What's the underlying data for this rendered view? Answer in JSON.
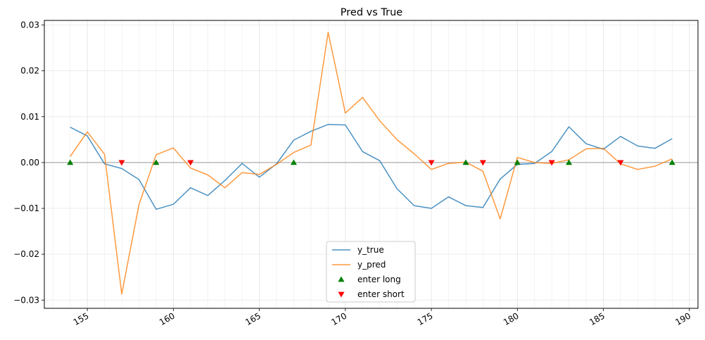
{
  "chart_data": {
    "type": "line",
    "title": "Pred vs True",
    "xlabel": "",
    "ylabel": "",
    "xlim": [
      152.5,
      190.5
    ],
    "ylim": [
      -0.0318,
      0.031
    ],
    "xticks": [
      155,
      160,
      165,
      170,
      175,
      180,
      185,
      190
    ],
    "xtick_labels": [
      "155",
      "160",
      "165",
      "170",
      "175",
      "180",
      "185",
      "190"
    ],
    "yticks": [
      -0.03,
      -0.02,
      -0.01,
      0.0,
      0.01,
      0.02,
      0.03
    ],
    "ytick_labels": [
      "−0.03",
      "−0.02",
      "−0.01",
      "0.00",
      "0.01",
      "0.02",
      "0.03"
    ],
    "grid": true,
    "zero_line": true,
    "legend_position": "lower-center",
    "x": [
      154,
      155,
      156,
      157,
      158,
      159,
      160,
      161,
      162,
      163,
      164,
      165,
      166,
      167,
      168,
      169,
      170,
      171,
      172,
      173,
      174,
      175,
      176,
      177,
      178,
      179,
      180,
      181,
      182,
      183,
      184,
      185,
      186,
      187,
      188,
      189
    ],
    "series": [
      {
        "name": "y_true",
        "color": "#1f77b4",
        "values": [
          0.0077,
          0.0058,
          -0.0003,
          -0.0013,
          -0.0037,
          -0.0102,
          -0.0091,
          -0.0055,
          -0.0072,
          -0.0039,
          -0.0002,
          -0.0032,
          -0.0003,
          0.0049,
          0.0068,
          0.0083,
          0.0082,
          0.0024,
          0.0004,
          -0.0057,
          -0.0094,
          -0.01,
          -0.0075,
          -0.0094,
          -0.0098,
          -0.0036,
          -0.0004,
          -0.0002,
          0.0024,
          0.0078,
          0.0041,
          0.0029,
          0.0057,
          0.0036,
          0.0031,
          0.0052
        ]
      },
      {
        "name": "y_pred",
        "color": "#ff7f0e",
        "values": [
          0.0013,
          0.0067,
          0.0018,
          -0.0287,
          -0.0092,
          0.0017,
          0.0032,
          -0.0012,
          -0.0027,
          -0.0055,
          -0.0022,
          -0.0026,
          -0.0004,
          0.0022,
          0.0038,
          0.0284,
          0.0108,
          0.0142,
          0.0091,
          0.005,
          0.0019,
          -0.0015,
          -0.0002,
          0.0001,
          -0.0019,
          -0.0123,
          0.0011,
          0.0,
          -0.0002,
          0.0006,
          0.003,
          0.0031,
          -0.0003,
          -0.0015,
          -0.0008,
          0.0008
        ]
      }
    ],
    "markers": [
      {
        "name": "enter long",
        "shape": "triangle-up",
        "color": "#008000",
        "x": [
          154,
          159,
          167,
          177,
          180,
          183,
          189
        ],
        "y": [
          0,
          0,
          0,
          0,
          0,
          0,
          0
        ]
      },
      {
        "name": "enter short",
        "shape": "triangle-down",
        "color": "#ff0000",
        "x": [
          157,
          161,
          175,
          178,
          182,
          186
        ],
        "y": [
          0,
          0,
          0,
          0,
          0,
          0
        ]
      }
    ]
  }
}
